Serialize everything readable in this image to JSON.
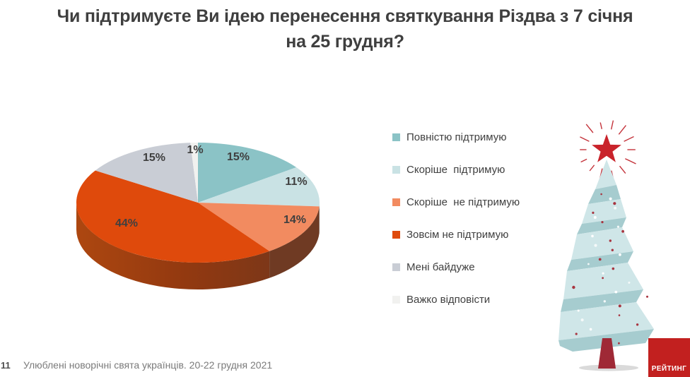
{
  "title": {
    "line1": "Чи підтримуєте Ви ідею перенесення святкування Різдва з 7 січня",
    "line2": "на 25 грудня?"
  },
  "chart_data": {
    "type": "pie",
    "style": "3d",
    "title": "Чи підтримуєте Ви ідею перенесення святкування Різдва з 7 січня на 25 грудня?",
    "unit": "%",
    "direction": "clockwise",
    "start_angle_deg": 0,
    "legend_position": "right",
    "slices": [
      {
        "label": "Повністю підтримую",
        "value": 15,
        "color": "#8bc3c6"
      },
      {
        "label": "Скоріше  підтримую",
        "value": 11,
        "color": "#c9e2e4"
      },
      {
        "label": "Скоріше  не підтримую",
        "value": 14,
        "color": "#f28b60"
      },
      {
        "label": "Зовсім не підтримую",
        "value": 44,
        "color": "#df4a0c"
      },
      {
        "label": "Мені байдуже",
        "value": 15,
        "color": "#c9cdd5"
      },
      {
        "label": "Важко відповісти",
        "value": 1,
        "color": "#f1f1ef"
      }
    ]
  },
  "decor": {
    "tree_icon": "christmas-tree-ribbon",
    "star_icon": "red-star",
    "tree_light_color": "#cfe6e8",
    "tree_dark_color": "#a6cccf",
    "star_color": "#c9232b",
    "trunk_color": "#9f2936"
  },
  "branding": {
    "logo_text": "РЕЙТИНГ",
    "logo_color": "#c2201f"
  },
  "footer": {
    "page_number": "11",
    "source": "Улюблені новорічні свята українців. 20-22 грудня 2021"
  }
}
